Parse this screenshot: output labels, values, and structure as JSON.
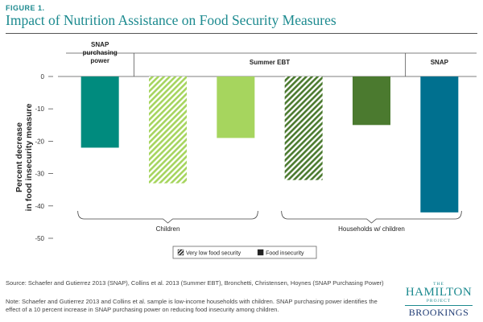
{
  "figure_label": "FIGURE 1.",
  "title": "Impact of Nutrition Assistance on Food Security Measures",
  "chart_data": {
    "type": "bar",
    "title": "",
    "xlabel": "",
    "ylabel": "Percent decrease\nin food insecurity measure",
    "ylim": [
      -50,
      0
    ],
    "yticks": [
      0,
      -10,
      -20,
      -30,
      -40,
      -50
    ],
    "grid": false,
    "top_groups": [
      {
        "label": "SNAP\npurchasing\npower",
        "from": 0,
        "to": 0
      },
      {
        "label": "Summer EBT",
        "from": 1,
        "to": 4
      },
      {
        "label": "SNAP",
        "from": 5,
        "to": 5
      }
    ],
    "bottom_groups": [
      {
        "label": "Children",
        "from": 0,
        "to": 2
      },
      {
        "label": "Households w/ children",
        "from": 3,
        "to": 5
      }
    ],
    "bars": [
      {
        "value": -22,
        "measure": "Food insecurity",
        "pattern": false,
        "color": "#008b7e"
      },
      {
        "value": -33,
        "measure": "Very low food security",
        "pattern": true,
        "color": "#a6d55e"
      },
      {
        "value": -19,
        "measure": "Food insecurity",
        "pattern": false,
        "color": "#a6d55e"
      },
      {
        "value": -32,
        "measure": "Very low food security",
        "pattern": true,
        "color": "#4b7a2f"
      },
      {
        "value": -15,
        "measure": "Food insecurity",
        "pattern": false,
        "color": "#4b7a2f"
      },
      {
        "value": -42,
        "measure": "Food insecurity",
        "pattern": false,
        "color": "#00708f"
      }
    ],
    "legend": {
      "placement": "bottom-center",
      "entries": [
        {
          "label": "Very low food security",
          "pattern": true
        },
        {
          "label": "Food insecurity",
          "pattern": false
        }
      ]
    }
  },
  "source": "Source: Schaefer and Gutierrez 2013 (SNAP), Collins et al. 2013 (Summer EBT), Bronchetti, Christensen, Hoynes (SNAP Purchasing Power)",
  "note": "Note: Schaefer and Gutierrez 2013 and Collins et al. sample is low-income households with children. SNAP purchasing power identifies the effect of a 10 percent increase in SNAP purchasing power on reducing food insecurity among children.",
  "logo": {
    "the": "THE",
    "hamilton": "HAMILTON",
    "project": "PROJECT",
    "brookings": "BROOKINGS"
  }
}
